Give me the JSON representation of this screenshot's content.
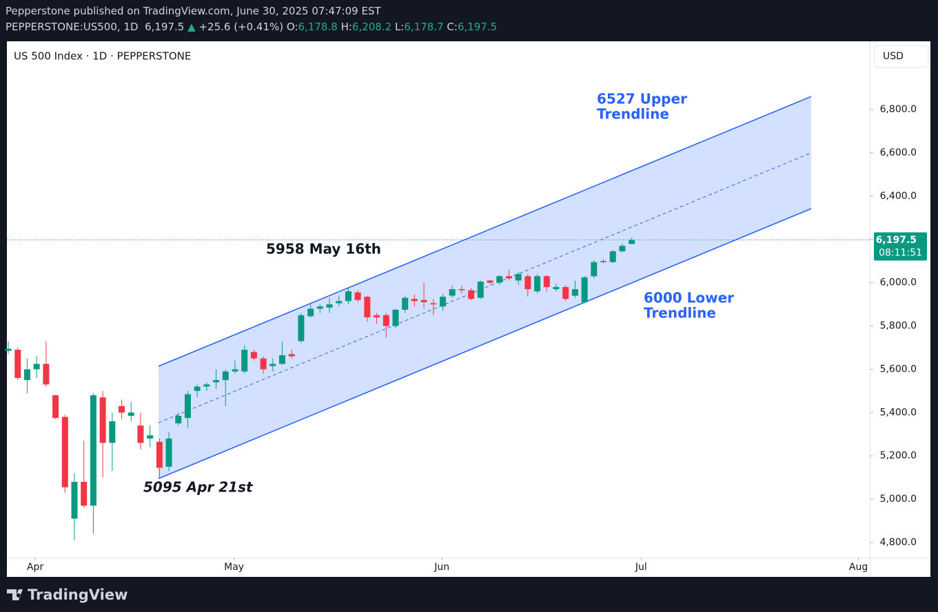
{
  "header": {
    "publisher": "Pepperstone published on TradingView.com, June 30, 2025 07:47:09 EST",
    "symbol": "PEPPERSTONE:US500, 1D",
    "last": "6,197.5",
    "change": "+25.6 (+0.41%)",
    "open_label": "O:",
    "open": "6,178.8",
    "high_label": "H:",
    "high": "6,208.2",
    "low_label": "L:",
    "low": "6,178.7",
    "close_label": "C:",
    "close": "6,197.5"
  },
  "logo": "TradingView",
  "chart_data": {
    "type": "candlestick",
    "title": "US 500 Index · 1D · PEPPERSTONE",
    "currency": "USD",
    "up_color": "#089981",
    "down_color": "#f23645",
    "ohlc": [
      [
        5685,
        5730,
        5670,
        5695
      ],
      [
        5690,
        5700,
        5550,
        5560
      ],
      [
        5550,
        5650,
        5490,
        5600
      ],
      [
        5600,
        5660,
        5560,
        5625
      ],
      [
        5625,
        5730,
        5520,
        5530
      ],
      [
        5480,
        5480,
        5370,
        5375
      ],
      [
        5380,
        5390,
        5030,
        5055
      ],
      [
        4910,
        5120,
        4810,
        5080
      ],
      [
        5080,
        5270,
        4960,
        4970
      ],
      [
        4970,
        5490,
        4840,
        5480
      ],
      [
        5470,
        5500,
        5100,
        5260
      ],
      [
        5260,
        5400,
        5130,
        5360
      ],
      [
        5430,
        5460,
        5370,
        5400
      ],
      [
        5385,
        5450,
        5360,
        5400
      ],
      [
        5340,
        5400,
        5230,
        5260
      ],
      [
        5280,
        5340,
        5240,
        5295
      ],
      [
        5265,
        5280,
        5095,
        5145
      ],
      [
        5150,
        5310,
        5130,
        5280
      ],
      [
        5350,
        5400,
        5340,
        5385
      ],
      [
        5375,
        5500,
        5330,
        5485
      ],
      [
        5500,
        5530,
        5470,
        5520
      ],
      [
        5520,
        5540,
        5500,
        5530
      ],
      [
        5540,
        5600,
        5510,
        5550
      ],
      [
        5550,
        5600,
        5430,
        5590
      ],
      [
        5590,
        5640,
        5580,
        5600
      ],
      [
        5590,
        5710,
        5580,
        5690
      ],
      [
        5680,
        5690,
        5640,
        5650
      ],
      [
        5650,
        5660,
        5580,
        5600
      ],
      [
        5615,
        5650,
        5590,
        5625
      ],
      [
        5625,
        5730,
        5620,
        5665
      ],
      [
        5670,
        5690,
        5650,
        5660
      ],
      [
        5730,
        5860,
        5720,
        5850
      ],
      [
        5845,
        5900,
        5840,
        5880
      ],
      [
        5880,
        5900,
        5860,
        5890
      ],
      [
        5885,
        5930,
        5860,
        5900
      ],
      [
        5905,
        5940,
        5890,
        5915
      ],
      [
        5915,
        5975,
        5900,
        5960
      ],
      [
        5955,
        5965,
        5910,
        5920
      ],
      [
        5935,
        5940,
        5820,
        5840
      ],
      [
        5850,
        5860,
        5810,
        5840
      ],
      [
        5850,
        5860,
        5745,
        5800
      ],
      [
        5800,
        5880,
        5790,
        5875
      ],
      [
        5875,
        5940,
        5860,
        5930
      ],
      [
        5925,
        5945,
        5890,
        5915
      ],
      [
        5920,
        6000,
        5880,
        5910
      ],
      [
        5905,
        5925,
        5850,
        5900
      ],
      [
        5890,
        5950,
        5870,
        5935
      ],
      [
        5940,
        5985,
        5930,
        5970
      ],
      [
        5970,
        5985,
        5950,
        5965
      ],
      [
        5965,
        5975,
        5920,
        5925
      ],
      [
        5930,
        6010,
        5925,
        6005
      ],
      [
        6010,
        6015,
        5990,
        6000
      ],
      [
        6000,
        6035,
        5990,
        6030
      ],
      [
        6030,
        6060,
        6010,
        6020
      ],
      [
        6010,
        6050,
        5990,
        6040
      ],
      [
        6030,
        6040,
        5935,
        5970
      ],
      [
        5960,
        6040,
        5950,
        6030
      ],
      [
        6030,
        6035,
        5960,
        5980
      ],
      [
        5970,
        5995,
        5960,
        5980
      ],
      [
        5980,
        5990,
        5915,
        5925
      ],
      [
        5940,
        6010,
        5930,
        5970
      ],
      [
        5910,
        6030,
        5905,
        6025
      ],
      [
        6030,
        6105,
        6020,
        6095
      ],
      [
        6095,
        6110,
        6090,
        6100
      ],
      [
        6095,
        6150,
        6090,
        6145
      ],
      [
        6145,
        6180,
        6140,
        6170
      ],
      [
        6178.8,
        6208.2,
        6178.7,
        6197.5
      ]
    ],
    "last_price_label": "6,197.5",
    "countdown": "08:11:51",
    "xlim": [
      -0.15,
      91.2
    ],
    "xticks": [
      {
        "value": 2.85,
        "label": "Apr"
      },
      {
        "value": 23.9,
        "label": "May"
      },
      {
        "value": 45.9,
        "label": "Jun"
      },
      {
        "value": 67,
        "label": "Jul"
      },
      {
        "value": 90,
        "label": "Aug"
      }
    ],
    "ylim": [
      4730,
      7115
    ],
    "yticks": [
      {
        "value": 4800,
        "label": "4,800.0"
      },
      {
        "value": 5000,
        "label": "5,000.0"
      },
      {
        "value": 5200,
        "label": "5,200.0"
      },
      {
        "value": 5400,
        "label": "5,400.0"
      },
      {
        "value": 5600,
        "label": "5,600.0"
      },
      {
        "value": 5800,
        "label": "5,800.0"
      },
      {
        "value": 6000,
        "label": "6,000.0"
      },
      {
        "value": 6200,
        "label": "6,200.0"
      },
      {
        "value": 6400,
        "label": "6,400.0"
      },
      {
        "value": 6600,
        "label": "6,600.0"
      },
      {
        "value": 6800,
        "label": "6,800.0"
      }
    ],
    "grid": false,
    "channel": {
      "color": "#2962ff",
      "x": [
        15.9,
        85.0
      ],
      "upper": [
        5614,
        6860
      ],
      "lower": [
        5095,
        6342
      ],
      "midline": [
        5353,
        6600
      ]
    },
    "annotations": [
      "6527 Upper",
      "Trendline",
      "6000 Lower",
      "Trendline",
      "5958 May 16th",
      "5095 Apr 21st"
    ]
  }
}
